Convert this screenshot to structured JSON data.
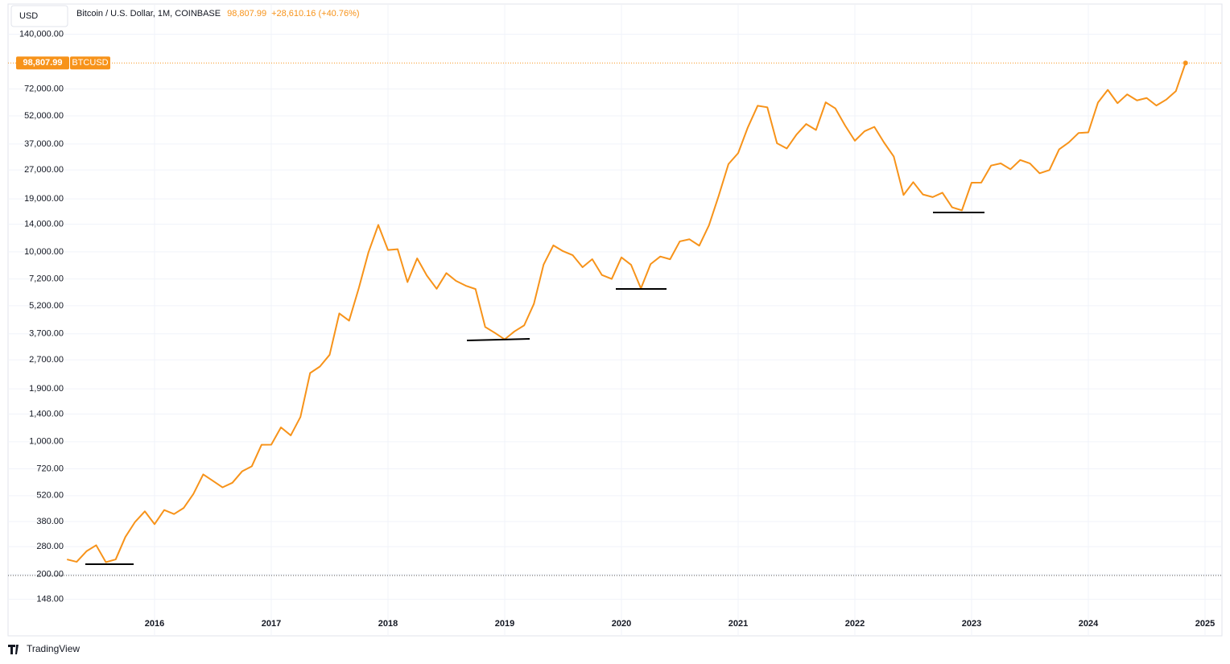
{
  "chart_data": {
    "type": "line",
    "title": "Bitcoin / U.S. Dollar, 1M, COINBASE",
    "change": "+28,610.16 (+40.76%)",
    "currency": "USD",
    "watermark": "TradingView",
    "log_scale": true,
    "grid": true,
    "x": [
      2015.25,
      2015.333,
      2015.417,
      2015.5,
      2015.583,
      2015.667,
      2015.75,
      2015.833,
      2015.917,
      2016,
      2016.083,
      2016.167,
      2016.25,
      2016.333,
      2016.417,
      2016.5,
      2016.583,
      2016.667,
      2016.75,
      2016.833,
      2016.917,
      2017,
      2017.083,
      2017.167,
      2017.25,
      2017.333,
      2017.417,
      2017.5,
      2017.583,
      2017.667,
      2017.75,
      2017.833,
      2017.917,
      2018,
      2018.083,
      2018.167,
      2018.25,
      2018.333,
      2018.417,
      2018.5,
      2018.583,
      2018.667,
      2018.75,
      2018.833,
      2018.917,
      2019,
      2019.083,
      2019.167,
      2019.25,
      2019.333,
      2019.417,
      2019.5,
      2019.583,
      2019.667,
      2019.75,
      2019.833,
      2019.917,
      2020,
      2020.083,
      2020.167,
      2020.25,
      2020.333,
      2020.417,
      2020.5,
      2020.583,
      2020.667,
      2020.75,
      2020.833,
      2020.917,
      2021,
      2021.083,
      2021.167,
      2021.25,
      2021.333,
      2021.417,
      2021.5,
      2021.583,
      2021.667,
      2021.75,
      2021.833,
      2021.917,
      2022,
      2022.083,
      2022.167,
      2022.25,
      2022.333,
      2022.417,
      2022.5,
      2022.583,
      2022.667,
      2022.75,
      2022.833,
      2022.917,
      2023,
      2023.083,
      2023.167,
      2023.25,
      2023.333,
      2023.417,
      2023.5,
      2023.583,
      2023.667,
      2023.75,
      2023.833,
      2023.917,
      2024,
      2024.083,
      2024.167,
      2024.25,
      2024.333,
      2024.417,
      2024.5,
      2024.583,
      2024.667,
      2024.75,
      2024.833
    ],
    "series": [
      {
        "name": "BTCUSD",
        "color": "#f7931a",
        "values": [
          240,
          233,
          265,
          285,
          232,
          240,
          315,
          378,
          430,
          368,
          437,
          416,
          448,
          531,
          673,
          622,
          575,
          608,
          698,
          742,
          964,
          965,
          1190,
          1080,
          1350,
          2300,
          2490,
          2870,
          4740,
          4340,
          6440,
          9950,
          13860,
          10230,
          10330,
          6930,
          9240,
          7500,
          6390,
          7730,
          7030,
          6630,
          6370,
          4020,
          3740,
          3460,
          3810,
          4100,
          5320,
          8560,
          10820,
          10080,
          9600,
          8300,
          9150,
          7550,
          7200,
          9350,
          8540,
          6420,
          8620,
          9450,
          9140,
          11350,
          11650,
          10780,
          13800,
          19700,
          28990,
          33110,
          45240,
          58800,
          57720,
          37300,
          35040,
          41460,
          47130,
          43830,
          61310,
          56950,
          46210,
          38480,
          43180,
          45540,
          37640,
          31790,
          19940,
          23290,
          20050,
          19430,
          20490,
          17170,
          16540,
          23130,
          23150,
          28480,
          29230,
          27220,
          30470,
          29230,
          25940,
          26970,
          34660,
          37720,
          42280,
          42580,
          61170,
          71330,
          60670,
          67530,
          62770,
          64620,
          58970,
          63330,
          70197.83,
          98807.99
        ],
        "value_labels": [
          null,
          null,
          null,
          null,
          null,
          null,
          null,
          null,
          null,
          null,
          null,
          null,
          null,
          null,
          null,
          null,
          null,
          null,
          null,
          null,
          null,
          null,
          null,
          null,
          null,
          null,
          null,
          null,
          null,
          null,
          null,
          null,
          null,
          null,
          null,
          null,
          null,
          null,
          null,
          null,
          null,
          null,
          null,
          null,
          null,
          null,
          null,
          null,
          null,
          null,
          null,
          null,
          null,
          null,
          null,
          null,
          null,
          null,
          null,
          null,
          null,
          null,
          null,
          null,
          null,
          null,
          null,
          null,
          null,
          null,
          null,
          null,
          null,
          null,
          null,
          null,
          null,
          null,
          null,
          null,
          null,
          null,
          null,
          null,
          null,
          null,
          null,
          null,
          null,
          null,
          null,
          null,
          null,
          null,
          null,
          null,
          null,
          null,
          null,
          null,
          null,
          null,
          null,
          null,
          null,
          null,
          null,
          null,
          null,
          null,
          null,
          null,
          null,
          null,
          null,
          "98,807.99"
        ]
      }
    ],
    "xlim": [
      2014.745,
      2025.145
    ],
    "xticks": [
      2016,
      2017,
      2018,
      2019,
      2020,
      2021,
      2022,
      2023,
      2024,
      2025
    ],
    "ylim": [
      95,
      200000
    ],
    "yticks": [
      {
        "value": 148,
        "label": "148.00"
      },
      {
        "value": 200,
        "label": "200.00"
      },
      {
        "value": 280,
        "label": "280.00"
      },
      {
        "value": 380,
        "label": "380.00"
      },
      {
        "value": 520,
        "label": "520.00"
      },
      {
        "value": 720,
        "label": "720.00"
      },
      {
        "value": 1000,
        "label": "1,000.00"
      },
      {
        "value": 1400,
        "label": "1,400.00"
      },
      {
        "value": 1900,
        "label": "1,900.00"
      },
      {
        "value": 2700,
        "label": "2,700.00"
      },
      {
        "value": 3700,
        "label": "3,700.00"
      },
      {
        "value": 5200,
        "label": "5,200.00"
      },
      {
        "value": 7200,
        "label": "7,200.00"
      },
      {
        "value": 10000,
        "label": "10,000.00"
      },
      {
        "value": 14000,
        "label": "14,000.00"
      },
      {
        "value": 19000,
        "label": "19,000.00"
      },
      {
        "value": 27000,
        "label": "27,000.00"
      },
      {
        "value": 37000,
        "label": "37,000.00"
      },
      {
        "value": 52000,
        "label": "52,000.00"
      },
      {
        "value": 72000,
        "label": "72,000.00"
      },
      {
        "value": 140000,
        "label": "140,000.00"
      }
    ]
  }
}
